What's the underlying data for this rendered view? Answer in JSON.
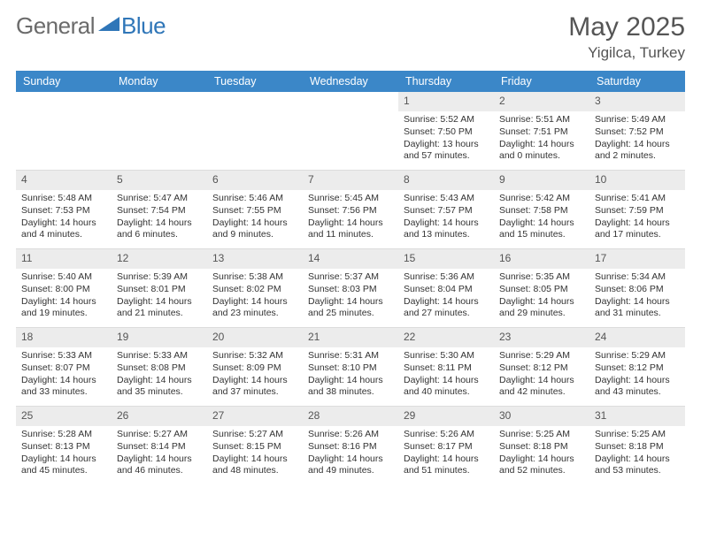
{
  "brand": {
    "text1": "General",
    "text2": "Blue"
  },
  "title": "May 2025",
  "location": "Yigilca, Turkey",
  "accent_color": "#3b87c8",
  "weekdays": [
    "Sunday",
    "Monday",
    "Tuesday",
    "Wednesday",
    "Thursday",
    "Friday",
    "Saturday"
  ],
  "weeks": [
    [
      null,
      null,
      null,
      null,
      {
        "n": "1",
        "sr": "Sunrise: 5:52 AM",
        "ss": "Sunset: 7:50 PM",
        "dl": "Daylight: 13 hours and 57 minutes."
      },
      {
        "n": "2",
        "sr": "Sunrise: 5:51 AM",
        "ss": "Sunset: 7:51 PM",
        "dl": "Daylight: 14 hours and 0 minutes."
      },
      {
        "n": "3",
        "sr": "Sunrise: 5:49 AM",
        "ss": "Sunset: 7:52 PM",
        "dl": "Daylight: 14 hours and 2 minutes."
      }
    ],
    [
      {
        "n": "4",
        "sr": "Sunrise: 5:48 AM",
        "ss": "Sunset: 7:53 PM",
        "dl": "Daylight: 14 hours and 4 minutes."
      },
      {
        "n": "5",
        "sr": "Sunrise: 5:47 AM",
        "ss": "Sunset: 7:54 PM",
        "dl": "Daylight: 14 hours and 6 minutes."
      },
      {
        "n": "6",
        "sr": "Sunrise: 5:46 AM",
        "ss": "Sunset: 7:55 PM",
        "dl": "Daylight: 14 hours and 9 minutes."
      },
      {
        "n": "7",
        "sr": "Sunrise: 5:45 AM",
        "ss": "Sunset: 7:56 PM",
        "dl": "Daylight: 14 hours and 11 minutes."
      },
      {
        "n": "8",
        "sr": "Sunrise: 5:43 AM",
        "ss": "Sunset: 7:57 PM",
        "dl": "Daylight: 14 hours and 13 minutes."
      },
      {
        "n": "9",
        "sr": "Sunrise: 5:42 AM",
        "ss": "Sunset: 7:58 PM",
        "dl": "Daylight: 14 hours and 15 minutes."
      },
      {
        "n": "10",
        "sr": "Sunrise: 5:41 AM",
        "ss": "Sunset: 7:59 PM",
        "dl": "Daylight: 14 hours and 17 minutes."
      }
    ],
    [
      {
        "n": "11",
        "sr": "Sunrise: 5:40 AM",
        "ss": "Sunset: 8:00 PM",
        "dl": "Daylight: 14 hours and 19 minutes."
      },
      {
        "n": "12",
        "sr": "Sunrise: 5:39 AM",
        "ss": "Sunset: 8:01 PM",
        "dl": "Daylight: 14 hours and 21 minutes."
      },
      {
        "n": "13",
        "sr": "Sunrise: 5:38 AM",
        "ss": "Sunset: 8:02 PM",
        "dl": "Daylight: 14 hours and 23 minutes."
      },
      {
        "n": "14",
        "sr": "Sunrise: 5:37 AM",
        "ss": "Sunset: 8:03 PM",
        "dl": "Daylight: 14 hours and 25 minutes."
      },
      {
        "n": "15",
        "sr": "Sunrise: 5:36 AM",
        "ss": "Sunset: 8:04 PM",
        "dl": "Daylight: 14 hours and 27 minutes."
      },
      {
        "n": "16",
        "sr": "Sunrise: 5:35 AM",
        "ss": "Sunset: 8:05 PM",
        "dl": "Daylight: 14 hours and 29 minutes."
      },
      {
        "n": "17",
        "sr": "Sunrise: 5:34 AM",
        "ss": "Sunset: 8:06 PM",
        "dl": "Daylight: 14 hours and 31 minutes."
      }
    ],
    [
      {
        "n": "18",
        "sr": "Sunrise: 5:33 AM",
        "ss": "Sunset: 8:07 PM",
        "dl": "Daylight: 14 hours and 33 minutes."
      },
      {
        "n": "19",
        "sr": "Sunrise: 5:33 AM",
        "ss": "Sunset: 8:08 PM",
        "dl": "Daylight: 14 hours and 35 minutes."
      },
      {
        "n": "20",
        "sr": "Sunrise: 5:32 AM",
        "ss": "Sunset: 8:09 PM",
        "dl": "Daylight: 14 hours and 37 minutes."
      },
      {
        "n": "21",
        "sr": "Sunrise: 5:31 AM",
        "ss": "Sunset: 8:10 PM",
        "dl": "Daylight: 14 hours and 38 minutes."
      },
      {
        "n": "22",
        "sr": "Sunrise: 5:30 AM",
        "ss": "Sunset: 8:11 PM",
        "dl": "Daylight: 14 hours and 40 minutes."
      },
      {
        "n": "23",
        "sr": "Sunrise: 5:29 AM",
        "ss": "Sunset: 8:12 PM",
        "dl": "Daylight: 14 hours and 42 minutes."
      },
      {
        "n": "24",
        "sr": "Sunrise: 5:29 AM",
        "ss": "Sunset: 8:12 PM",
        "dl": "Daylight: 14 hours and 43 minutes."
      }
    ],
    [
      {
        "n": "25",
        "sr": "Sunrise: 5:28 AM",
        "ss": "Sunset: 8:13 PM",
        "dl": "Daylight: 14 hours and 45 minutes."
      },
      {
        "n": "26",
        "sr": "Sunrise: 5:27 AM",
        "ss": "Sunset: 8:14 PM",
        "dl": "Daylight: 14 hours and 46 minutes."
      },
      {
        "n": "27",
        "sr": "Sunrise: 5:27 AM",
        "ss": "Sunset: 8:15 PM",
        "dl": "Daylight: 14 hours and 48 minutes."
      },
      {
        "n": "28",
        "sr": "Sunrise: 5:26 AM",
        "ss": "Sunset: 8:16 PM",
        "dl": "Daylight: 14 hours and 49 minutes."
      },
      {
        "n": "29",
        "sr": "Sunrise: 5:26 AM",
        "ss": "Sunset: 8:17 PM",
        "dl": "Daylight: 14 hours and 51 minutes."
      },
      {
        "n": "30",
        "sr": "Sunrise: 5:25 AM",
        "ss": "Sunset: 8:18 PM",
        "dl": "Daylight: 14 hours and 52 minutes."
      },
      {
        "n": "31",
        "sr": "Sunrise: 5:25 AM",
        "ss": "Sunset: 8:18 PM",
        "dl": "Daylight: 14 hours and 53 minutes."
      }
    ]
  ]
}
